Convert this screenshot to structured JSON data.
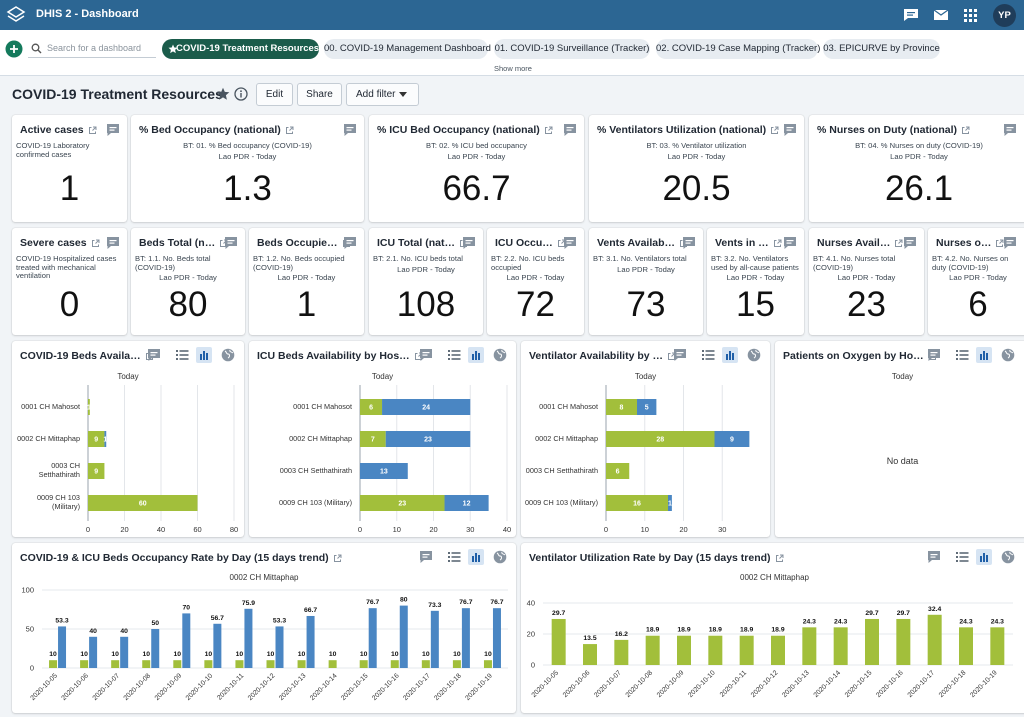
{
  "header": {
    "title": "DHIS 2 - Dashboard",
    "user": "YP"
  },
  "dashboard_bar": {
    "search_placeholder": "Search for a dashboard",
    "chips": [
      "COVID-19 Treatment Resources",
      "00. COVID-19 Management Dashboard",
      "01. COVID-19 Surveillance (Tracker)",
      "02. COVID-19 Case Mapping (Tracker)",
      "03. EPICURVE by Province"
    ],
    "show_more": "Show more"
  },
  "dashboard": {
    "title": "COVID-19 Treatment Resources",
    "actions": [
      "Edit",
      "Share",
      "Add filter"
    ]
  },
  "kpis": [
    {
      "title": "Active cases",
      "description": "COVID-19 Laboratory confirmed cases",
      "value": 1
    },
    {
      "title": "% Bed Occupancy (national)",
      "description": "BT: 01. % Bed occupancy (COVID-19)",
      "subtitle": "Lao PDR - Today",
      "value": 1.3
    },
    {
      "title": "% ICU Bed Occupancy (national)",
      "description": "BT: 02. % ICU bed occupancy",
      "subtitle": "Lao PDR - Today",
      "value": 66.7
    },
    {
      "title": "% Ventilators Utilization (national)",
      "description": "BT: 03. % Ventilator utilization",
      "subtitle": "Lao PDR - Today",
      "value": 20.5
    },
    {
      "title": "% Nurses on Duty (national)",
      "description": "BT: 04. % Nurses on duty (COVID-19)",
      "subtitle": "Lao PDR - Today",
      "value": 26.1
    },
    {
      "title": "Severe cases",
      "description": "COVID-19 Hospitalized cases treated with mechanical ventilation",
      "value": 0
    },
    {
      "title": "Beds Total (n…",
      "description": "BT: 1.1. No. Beds total (COVID-19)",
      "subtitle": "Lao PDR - Today",
      "value": 80
    },
    {
      "title": "Beds Occupie…",
      "description": "BT: 1.2. No. Beds occupied (COVID-19)",
      "subtitle": "Lao PDR - Today",
      "value": 1
    },
    {
      "title": "ICU Total (nat…",
      "description": "BT: 2.1. No. ICU beds total",
      "subtitle": "Lao PDR - Today",
      "value": 108
    },
    {
      "title": "ICU Occu…",
      "description": "BT: 2.2. No. ICU beds occupied",
      "subtitle": "Lao PDR - Today",
      "value": 72
    },
    {
      "title": "Vents Availab…",
      "description": "BT: 3.1. No. Ventilators total",
      "subtitle": "Lao PDR - Today",
      "value": 73
    },
    {
      "title": "Vents in …",
      "description": "BT: 3.2. No. Ventilators used by all-cause patients",
      "subtitle": "Lao PDR - Today",
      "value": 15
    },
    {
      "title": "Nurses Avail…",
      "description": "BT: 4.1. No. Nurses total (COVID-19)",
      "subtitle": "Lao PDR - Today",
      "value": 23
    },
    {
      "title": "Nurses o…",
      "description": "BT: 4.2. No. Nurses on duty (COVID-19)",
      "subtitle": "Lao PDR - Today",
      "value": 6
    }
  ],
  "charts": [
    {
      "type": "bar",
      "orientation": "horizontal",
      "stacked": true,
      "title": "COVID-19 Beds Availa…",
      "subtitle": "Today",
      "categories": [
        "0001 CH Mahosot",
        "0002 CH Mittaphap",
        "0003 CH Setthathirath",
        "0009 CH 103 (Military)"
      ],
      "series": [
        {
          "color": "#a2bf3b",
          "values": [
            1,
            9,
            9,
            60
          ]
        },
        {
          "color": "#4a86c3",
          "values": [
            null,
            1,
            null,
            null
          ]
        }
      ],
      "xlim": [
        0,
        80
      ],
      "xticks": [
        0,
        20,
        40,
        60,
        80
      ],
      "grid": true
    },
    {
      "type": "bar",
      "orientation": "horizontal",
      "stacked": true,
      "title": "ICU Beds Availability by Hos…",
      "subtitle": "Today",
      "categories": [
        "0001 CH Mahosot",
        "0002 CH Mittaphap",
        "0003 CH Setthathirath",
        "0009 CH 103 (Military)"
      ],
      "series": [
        {
          "color": "#a2bf3b",
          "values": [
            6,
            7,
            null,
            23
          ]
        },
        {
          "color": "#4a86c3",
          "values": [
            24,
            23,
            13,
            12
          ]
        }
      ],
      "xlim": [
        0,
        40
      ],
      "xticks": [
        0,
        10,
        20,
        30,
        40
      ],
      "grid": true
    },
    {
      "type": "bar",
      "orientation": "horizontal",
      "stacked": true,
      "title": "Ventilator Availability by …",
      "subtitle": "Today",
      "categories": [
        "0001 CH Mahosot",
        "0002 CH Mittaphap",
        "0003 CH Setthathirath",
        "0009 CH 103 (Military)"
      ],
      "series": [
        {
          "color": "#a2bf3b",
          "values": [
            8,
            28,
            6,
            16
          ]
        },
        {
          "color": "#4a86c3",
          "values": [
            5,
            9,
            null,
            1
          ]
        }
      ],
      "xlim": [
        0,
        40
      ],
      "xticks": [
        0,
        10,
        20,
        30
      ],
      "grid": true
    },
    {
      "type": "bar",
      "title": "Patients on Oxygen by Ho…",
      "subtitle": "Today",
      "message": "No data"
    },
    {
      "type": "bar",
      "orientation": "vertical",
      "title": "COVID-19 & ICU Beds Occupancy Rate by Day (15 days trend)",
      "subtitle": "0002 CH Mittaphap",
      "categories": [
        "2020-10-05",
        "2020-10-06",
        "2020-10-07",
        "2020-10-08",
        "2020-10-09",
        "2020-10-10",
        "2020-10-11",
        "2020-10-12",
        "2020-10-13",
        "2020-10-14",
        "2020-10-15",
        "2020-10-16",
        "2020-10-17",
        "2020-10-18",
        "2020-10-19"
      ],
      "series": [
        {
          "color": "#a2bf3b",
          "values": [
            10,
            10,
            10,
            10,
            10,
            10,
            10,
            10,
            10,
            10,
            10,
            10,
            10,
            10,
            10
          ]
        },
        {
          "color": "#4a86c3",
          "values": [
            53.3,
            40,
            40,
            50,
            70,
            56.7,
            75.9,
            53.3,
            66.7,
            null,
            76.7,
            80,
            73.3,
            76.7,
            76.7
          ]
        }
      ],
      "ylim": [
        0,
        100
      ],
      "yticks": [
        0,
        50,
        100
      ],
      "grid": true
    },
    {
      "type": "bar",
      "orientation": "vertical",
      "title": "Ventilator Utilization Rate by Day (15 days trend)",
      "subtitle": "0002 CH Mittaphap",
      "categories": [
        "2020-10-05",
        "2020-10-06",
        "2020-10-07",
        "2020-10-08",
        "2020-10-09",
        "2020-10-10",
        "2020-10-11",
        "2020-10-12",
        "2020-10-13",
        "2020-10-14",
        "2020-10-15",
        "2020-10-16",
        "2020-10-17",
        "2020-10-18",
        "2020-10-19"
      ],
      "series": [
        {
          "color": "#a2bf3b",
          "values": [
            29.7,
            13.5,
            16.2,
            18.9,
            18.9,
            18.9,
            18.9,
            18.9,
            24.3,
            24.3,
            29.7,
            29.7,
            32.4,
            24.3,
            24.3
          ]
        }
      ],
      "ylim": [
        0,
        40
      ],
      "yticks": [
        0,
        20,
        40
      ],
      "grid": true
    }
  ]
}
